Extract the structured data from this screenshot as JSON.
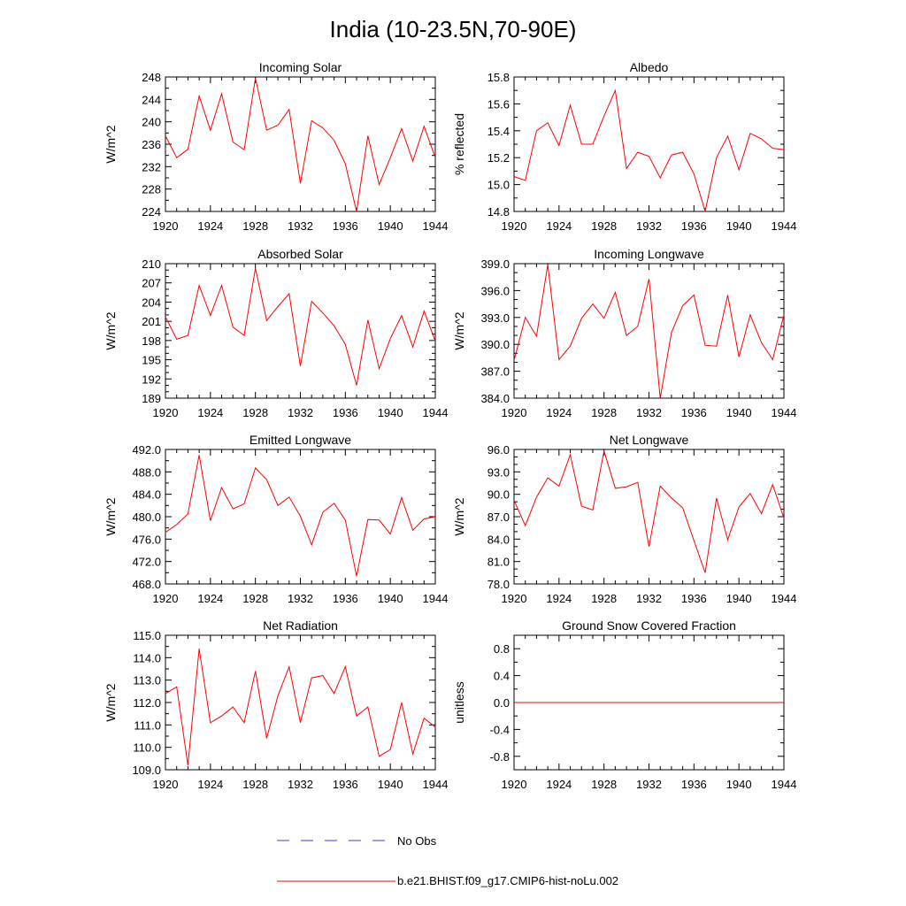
{
  "page_title": "India (10-23.5N,70-90E)",
  "legend": {
    "obs_label": "No Obs",
    "model_label": "b.e21.BHIST.f09_g17.CMIP6-hist-noLu.002",
    "obs_color": "#3b3bd6",
    "model_color": "#ff0000"
  },
  "chart_data": [
    {
      "type": "line",
      "title": "Incoming Solar",
      "ylabel": "W/m^2",
      "xlim": [
        1920,
        1944
      ],
      "ylim": [
        224,
        248
      ],
      "xticks": [
        "1920",
        "1924",
        "1928",
        "1932",
        "1936",
        "1940",
        "1944"
      ],
      "yticks": [
        "224",
        "228",
        "232",
        "236",
        "240",
        "244",
        "248"
      ],
      "yminor": 1,
      "series": [
        {
          "color": "#ff0000",
          "x": [
            1920,
            1921,
            1922,
            1923,
            1924,
            1925,
            1926,
            1927,
            1928,
            1929,
            1930,
            1931,
            1932,
            1933,
            1934,
            1935,
            1936,
            1937,
            1938,
            1939,
            1940,
            1941,
            1942,
            1943,
            1944
          ],
          "values": [
            237.5,
            233.6,
            235.1,
            244.6,
            238.5,
            245.0,
            236.4,
            235.0,
            247.8,
            238.5,
            239.4,
            242.2,
            229.0,
            240.2,
            238.9,
            236.7,
            232.5,
            224.0,
            237.5,
            228.8,
            233.6,
            238.8,
            233.0,
            239.2,
            233.6
          ]
        }
      ]
    },
    {
      "type": "line",
      "title": "Albedo",
      "ylabel": "% reflected",
      "xlim": [
        1920,
        1944
      ],
      "ylim": [
        14.8,
        15.8
      ],
      "xticks": [
        "1920",
        "1924",
        "1928",
        "1932",
        "1936",
        "1940",
        "1944"
      ],
      "yticks": [
        "14.8",
        "15.0",
        "15.2",
        "15.4",
        "15.6",
        "15.8"
      ],
      "yminor": 1,
      "series": [
        {
          "color": "#ff0000",
          "x": [
            1920,
            1921,
            1922,
            1923,
            1924,
            1925,
            1926,
            1927,
            1928,
            1929,
            1930,
            1931,
            1932,
            1933,
            1934,
            1935,
            1936,
            1937,
            1938,
            1939,
            1940,
            1941,
            1942,
            1943,
            1944
          ],
          "values": [
            15.06,
            15.03,
            15.4,
            15.46,
            15.29,
            15.59,
            15.3,
            15.3,
            15.51,
            15.7,
            15.12,
            15.24,
            15.21,
            15.05,
            15.22,
            15.24,
            15.08,
            14.8,
            15.2,
            15.36,
            15.11,
            15.38,
            15.34,
            15.27,
            15.26
          ]
        }
      ]
    },
    {
      "type": "line",
      "title": "Absorbed Solar",
      "ylabel": "W/m^2",
      "xlim": [
        1920,
        1944
      ],
      "ylim": [
        189,
        210
      ],
      "xticks": [
        "1920",
        "1924",
        "1928",
        "1932",
        "1936",
        "1940",
        "1944"
      ],
      "yticks": [
        "189",
        "192",
        "195",
        "198",
        "201",
        "204",
        "207",
        "210"
      ],
      "yminor": 2,
      "series": [
        {
          "color": "#ff0000",
          "x": [
            1920,
            1921,
            1922,
            1923,
            1924,
            1925,
            1926,
            1927,
            1928,
            1929,
            1930,
            1931,
            1932,
            1933,
            1934,
            1935,
            1936,
            1937,
            1938,
            1939,
            1940,
            1941,
            1942,
            1943,
            1944
          ],
          "values": [
            201.7,
            198.2,
            198.8,
            206.6,
            201.9,
            206.6,
            200.1,
            198.8,
            209.3,
            201.1,
            203.3,
            205.3,
            194.0,
            204.1,
            202.3,
            200.3,
            197.4,
            191.0,
            201.2,
            193.6,
            198.3,
            201.9,
            197.0,
            202.6,
            197.9
          ]
        }
      ]
    },
    {
      "type": "line",
      "title": "Incoming Longwave",
      "ylabel": "W/m^2",
      "xlim": [
        1920,
        1944
      ],
      "ylim": [
        384.0,
        399.0
      ],
      "xticks": [
        "1920",
        "1924",
        "1928",
        "1932",
        "1936",
        "1940",
        "1944"
      ],
      "yticks": [
        "384.0",
        "387.0",
        "390.0",
        "393.0",
        "396.0",
        "399.0"
      ],
      "yminor": 2,
      "series": [
        {
          "color": "#ff0000",
          "x": [
            1920,
            1921,
            1922,
            1923,
            1924,
            1925,
            1926,
            1927,
            1928,
            1929,
            1930,
            1931,
            1932,
            1933,
            1934,
            1935,
            1936,
            1937,
            1938,
            1939,
            1940,
            1941,
            1942,
            1943,
            1944
          ],
          "values": [
            388.2,
            393.0,
            390.9,
            398.9,
            388.3,
            389.8,
            392.9,
            394.5,
            392.9,
            395.8,
            391.0,
            392.0,
            397.3,
            384.0,
            391.3,
            394.3,
            395.5,
            389.9,
            389.8,
            395.5,
            388.6,
            393.3,
            390.2,
            388.3,
            393.3
          ]
        }
      ]
    },
    {
      "type": "line",
      "title": "Emitted Longwave",
      "ylabel": "W/m^2",
      "xlim": [
        1920,
        1944
      ],
      "ylim": [
        468.0,
        492.0
      ],
      "xticks": [
        "1920",
        "1924",
        "1928",
        "1932",
        "1936",
        "1940",
        "1944"
      ],
      "yticks": [
        "468.0",
        "472.0",
        "476.0",
        "480.0",
        "484.0",
        "488.0",
        "492.0"
      ],
      "yminor": 1,
      "series": [
        {
          "color": "#ff0000",
          "x": [
            1920,
            1921,
            1922,
            1923,
            1924,
            1925,
            1926,
            1927,
            1928,
            1929,
            1930,
            1931,
            1932,
            1933,
            1934,
            1935,
            1936,
            1937,
            1938,
            1939,
            1940,
            1941,
            1942,
            1943,
            1944
          ],
          "values": [
            477.2,
            478.6,
            480.5,
            491.0,
            479.3,
            485.2,
            481.4,
            482.3,
            488.7,
            486.6,
            482.0,
            483.5,
            480.1,
            475.0,
            480.8,
            482.4,
            479.4,
            469.4,
            479.5,
            479.4,
            476.9,
            483.4,
            477.6,
            479.6,
            480.0
          ]
        }
      ]
    },
    {
      "type": "line",
      "title": "Net Longwave",
      "ylabel": "W/m^2",
      "xlim": [
        1920,
        1944
      ],
      "ylim": [
        78.0,
        96.0
      ],
      "xticks": [
        "1920",
        "1924",
        "1928",
        "1932",
        "1936",
        "1940",
        "1944"
      ],
      "yticks": [
        "78.0",
        "81.0",
        "84.0",
        "87.0",
        "90.0",
        "93.0",
        "96.0"
      ],
      "yminor": 2,
      "series": [
        {
          "color": "#ff0000",
          "x": [
            1920,
            1921,
            1922,
            1923,
            1924,
            1925,
            1926,
            1927,
            1928,
            1929,
            1930,
            1931,
            1932,
            1933,
            1934,
            1935,
            1936,
            1937,
            1938,
            1939,
            1940,
            1941,
            1942,
            1943,
            1944
          ],
          "values": [
            89.2,
            85.8,
            89.6,
            92.2,
            91.1,
            95.3,
            88.4,
            87.9,
            95.8,
            90.8,
            91.0,
            91.6,
            83.0,
            91.1,
            89.5,
            88.2,
            83.8,
            79.5,
            89.5,
            83.9,
            88.3,
            90.1,
            87.4,
            91.3,
            86.8
          ]
        }
      ]
    },
    {
      "type": "line",
      "title": "Net Radiation",
      "ylabel": "W/m^2",
      "xlim": [
        1920,
        1944
      ],
      "ylim": [
        109.0,
        115.0
      ],
      "xticks": [
        "1920",
        "1924",
        "1928",
        "1932",
        "1936",
        "1940",
        "1944"
      ],
      "yticks": [
        "109.0",
        "110.0",
        "111.0",
        "112.0",
        "113.0",
        "114.0",
        "115.0"
      ],
      "yminor": 1,
      "series": [
        {
          "color": "#ff0000",
          "x": [
            1920,
            1921,
            1922,
            1923,
            1924,
            1925,
            1926,
            1927,
            1928,
            1929,
            1930,
            1931,
            1932,
            1933,
            1934,
            1935,
            1936,
            1937,
            1938,
            1939,
            1940,
            1941,
            1942,
            1943,
            1944
          ],
          "values": [
            112.4,
            112.7,
            109.2,
            114.4,
            111.1,
            111.4,
            111.8,
            111.1,
            113.4,
            110.4,
            112.3,
            113.6,
            111.1,
            113.1,
            113.2,
            112.4,
            113.6,
            111.4,
            111.8,
            109.6,
            109.9,
            112.0,
            109.7,
            111.3,
            110.9
          ]
        }
      ]
    },
    {
      "type": "line",
      "title": "Ground Snow Covered Fraction",
      "ylabel": "unitless",
      "xlim": [
        1920,
        1944
      ],
      "ylim": [
        -1.0,
        1.0
      ],
      "xticks": [
        "1920",
        "1924",
        "1928",
        "1932",
        "1936",
        "1940",
        "1944"
      ],
      "yticks": [
        "-0.8",
        "-0.4",
        "0.0",
        "0.4",
        "0.8"
      ],
      "yminor": 1,
      "series": [
        {
          "color": "#ff0000",
          "x": [
            1920,
            1944
          ],
          "values": [
            0.0,
            0.0
          ]
        }
      ]
    }
  ]
}
